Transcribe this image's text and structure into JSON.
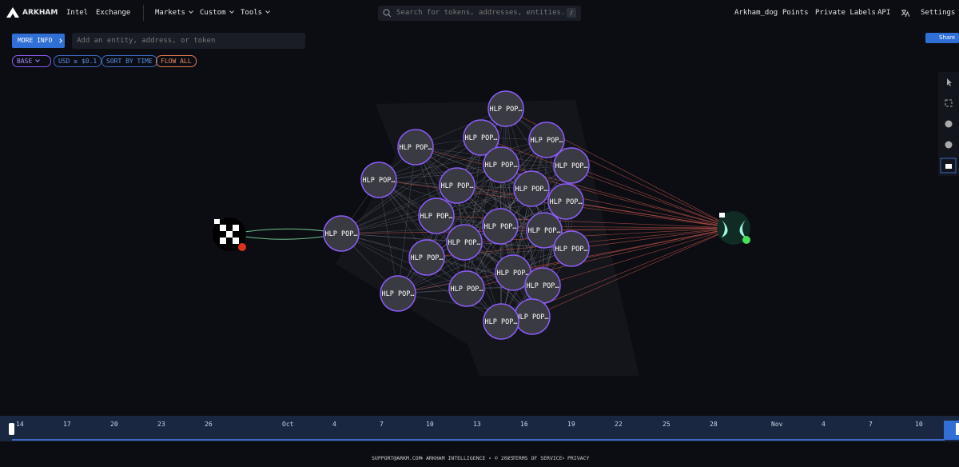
{
  "header": {
    "brand": "ARKHAM",
    "nav": [
      "Intel",
      "Exchange"
    ],
    "menus": [
      "Markets",
      "Custom",
      "Tools"
    ],
    "search": "Search for tokens, addresses, entities...",
    "search_key": "/",
    "right": [
      "Arkham_dog",
      "Points",
      "Private Labels",
      "API",
      "Settings"
    ]
  },
  "toolbar": {
    "more_info": "MORE INFO",
    "entity_input": "Add an entity, address, or token",
    "share": "Share",
    "filters": [
      "BASE",
      "USD ≥ $0.1",
      "SORT BY TIME",
      "FLOW ALL"
    ]
  },
  "graph": {
    "nodes": [
      {
        "label": "HLP POP…"
      },
      {
        "label": "HLP POP…"
      },
      {
        "label": "HLP POP…"
      },
      {
        "label": "HLP POP…"
      },
      {
        "label": "HLP POP…"
      },
      {
        "label": "HLP POP…"
      },
      {
        "label": "HLP POP…"
      },
      {
        "label": "HLP POP…"
      },
      {
        "label": "HLP POP…"
      },
      {
        "label": "HLP POP…"
      },
      {
        "label": "HLP POP…"
      },
      {
        "label": "HLP POP…"
      },
      {
        "label": "HLP POP…"
      },
      {
        "label": "HLP POP…"
      },
      {
        "label": "HLP POP…"
      },
      {
        "label": "HLP POP…"
      },
      {
        "label": "HLP POP…"
      },
      {
        "label": "HLP POP…"
      },
      {
        "label": "HLP POP…"
      },
      {
        "label": "HLP POP…"
      },
      {
        "label": "HLP POP…"
      },
      {
        "label": "HLP POP…"
      },
      {
        "label": "HLP POP…"
      }
    ]
  },
  "timeline": {
    "labels": [
      "14",
      "17",
      "20",
      "23",
      "26",
      "Oct",
      "4",
      "7",
      "10",
      "13",
      "16",
      "19",
      "22",
      "25",
      "28",
      "Nov",
      "4",
      "7",
      "10"
    ]
  },
  "footer": [
    "SUPPORT@ARKM.COM",
    "ARKHAM INTELLIGENCE",
    "© 2025",
    "TERMS OF SERVICE",
    "PRIVACY"
  ]
}
